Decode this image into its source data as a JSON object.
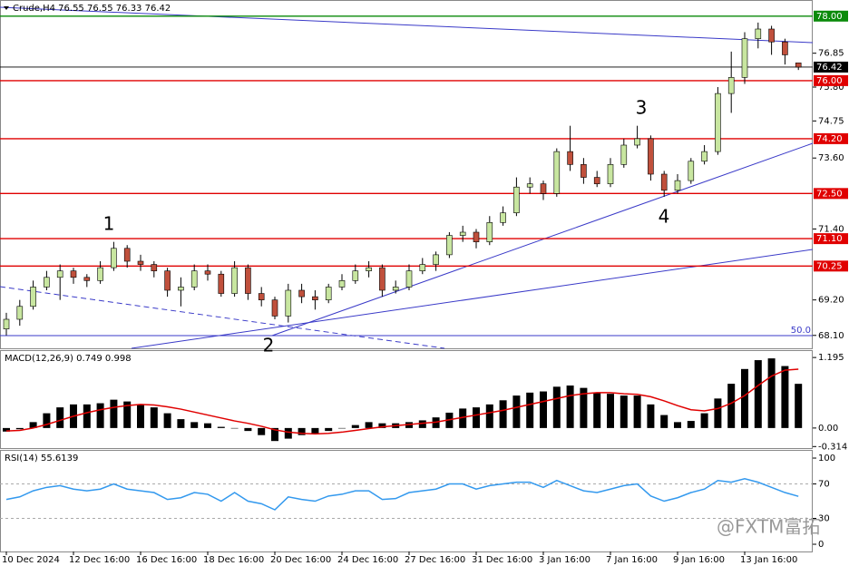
{
  "chart_data": [
    {
      "type": "candlestick",
      "title": "Crude,H4  76.55 76.55 76.33 76.42",
      "categories": [
        "10 Dec 2024",
        null,
        null,
        null,
        null,
        "12 Dec 16:00",
        null,
        null,
        null,
        null,
        "16 Dec 16:00",
        null,
        null,
        null,
        null,
        "18 Dec 16:00",
        null,
        null,
        null,
        null,
        "20 Dec 16:00",
        null,
        null,
        null,
        null,
        "24 Dec 16:00",
        null,
        null,
        null,
        null,
        "27 Dec 16:00",
        null,
        null,
        null,
        null,
        "31 Dec 16:00",
        null,
        null,
        null,
        null,
        "3 Jan 16:00",
        null,
        null,
        null,
        null,
        "7 Jan 16:00",
        null,
        null,
        null,
        null,
        "9 Jan 16:00",
        null,
        null,
        null,
        null,
        "13 Jan 16:00",
        null,
        null,
        null,
        null
      ],
      "open": [
        68.3,
        68.6,
        69.0,
        69.6,
        69.9,
        70.1,
        69.9,
        69.8,
        70.2,
        70.8,
        70.4,
        70.3,
        70.1,
        69.5,
        69.6,
        70.1,
        70.0,
        69.4,
        70.2,
        69.4,
        69.2,
        68.7,
        69.5,
        69.3,
        69.2,
        69.6,
        69.8,
        70.1,
        70.2,
        69.5,
        69.6,
        70.1,
        70.3,
        70.6,
        71.2,
        71.3,
        71.0,
        71.6,
        71.9,
        72.7,
        72.8,
        72.5,
        73.8,
        73.4,
        73.0,
        72.8,
        73.4,
        74.0,
        74.2,
        73.1,
        72.6,
        72.9,
        73.5,
        73.8,
        75.6,
        76.1,
        77.3,
        77.6,
        77.2,
        76.55
      ],
      "high": [
        68.8,
        69.2,
        69.8,
        70.1,
        70.3,
        70.2,
        70.0,
        70.4,
        71.0,
        70.9,
        70.6,
        70.4,
        70.2,
        69.9,
        70.3,
        70.3,
        70.1,
        70.4,
        70.3,
        69.6,
        69.3,
        69.7,
        69.7,
        69.5,
        69.7,
        70.0,
        70.3,
        70.4,
        70.3,
        69.8,
        70.3,
        70.5,
        70.7,
        71.3,
        71.5,
        71.4,
        71.8,
        72.1,
        73.0,
        73.0,
        72.9,
        73.9,
        74.6,
        73.6,
        73.2,
        73.6,
        74.2,
        74.6,
        74.3,
        73.2,
        73.1,
        73.6,
        74.0,
        75.8,
        76.9,
        77.5,
        77.8,
        77.7,
        77.3,
        76.55
      ],
      "low": [
        68.1,
        68.4,
        68.9,
        69.5,
        69.2,
        69.7,
        69.6,
        69.7,
        70.1,
        70.2,
        70.1,
        69.9,
        69.3,
        69.0,
        69.5,
        69.8,
        69.3,
        69.3,
        69.2,
        69.0,
        68.6,
        68.5,
        69.1,
        68.9,
        69.1,
        69.5,
        69.7,
        69.9,
        69.3,
        69.4,
        69.5,
        70.0,
        70.1,
        70.5,
        71.0,
        70.8,
        70.9,
        71.5,
        71.8,
        72.5,
        72.3,
        72.4,
        73.2,
        72.8,
        72.7,
        72.7,
        73.3,
        73.9,
        72.9,
        72.4,
        72.5,
        72.8,
        73.4,
        73.7,
        75.0,
        75.9,
        77.0,
        76.8,
        76.5,
        76.33
      ],
      "close": [
        68.6,
        69.0,
        69.6,
        69.9,
        70.1,
        69.9,
        69.8,
        70.2,
        70.8,
        70.4,
        70.3,
        70.1,
        69.5,
        69.6,
        70.1,
        70.0,
        69.4,
        70.2,
        69.4,
        69.2,
        68.7,
        69.5,
        69.3,
        69.2,
        69.6,
        69.8,
        70.1,
        70.2,
        69.5,
        69.6,
        70.1,
        70.3,
        70.6,
        71.2,
        71.3,
        71.0,
        71.6,
        71.9,
        72.7,
        72.8,
        72.5,
        73.8,
        73.4,
        73.0,
        72.8,
        73.4,
        74.0,
        74.2,
        73.1,
        72.6,
        72.9,
        73.5,
        73.8,
        75.6,
        76.1,
        77.3,
        77.6,
        77.2,
        76.8,
        76.42
      ],
      "up_color": "#c8e6a0",
      "down_color": "#c0503c",
      "ylim": [
        67.7,
        78.5
      ],
      "yticks": [
        {
          "value": 68.1,
          "label": "68.10"
        },
        {
          "value": 69.2,
          "label": "69.20"
        },
        {
          "value": 71.4,
          "label": "71.40"
        },
        {
          "value": 73.6,
          "label": "73.60"
        },
        74.75,
        {
          "value": 75.8,
          "label": "75.80"
        },
        76.85
      ],
      "levels": [
        {
          "value": 78,
          "label": "78.00",
          "color": "#0a8a0a"
        },
        {
          "value": 76.42,
          "color": "#000000"
        },
        {
          "value": 76,
          "label": "76.00",
          "color": "#e00000"
        },
        {
          "value": 74.2,
          "label": "74.20",
          "color": "#e00000"
        },
        {
          "value": 72.5,
          "label": "72.50",
          "color": "#e00000"
        },
        {
          "value": 71.1,
          "label": "71.10",
          "color": "#e00000"
        },
        {
          "value": 70.25,
          "color": "#e00000"
        }
      ],
      "annotations": [
        "1",
        "2",
        "3",
        "4",
        "50.0"
      ],
      "watermark": "@FXTM富拓"
    },
    {
      "type": "macd",
      "title": "MACD(12,26,9) 0.749 0.998",
      "histogram": {
        "color": "#000000",
        "values": [
          -0.06,
          -0.02,
          0.1,
          0.25,
          0.35,
          0.4,
          0.4,
          0.42,
          0.48,
          0.45,
          0.4,
          0.35,
          0.25,
          0.15,
          0.1,
          0.08,
          0.02,
          0.0,
          -0.05,
          -0.12,
          -0.22,
          -0.18,
          -0.12,
          -0.1,
          -0.05,
          0.0,
          0.05,
          0.1,
          0.08,
          0.08,
          0.1,
          0.13,
          0.18,
          0.26,
          0.33,
          0.35,
          0.4,
          0.47,
          0.55,
          0.6,
          0.62,
          0.7,
          0.72,
          0.68,
          0.6,
          0.58,
          0.55,
          0.55,
          0.4,
          0.22,
          0.1,
          0.12,
          0.25,
          0.5,
          0.75,
          1.0,
          1.15,
          1.18,
          1.05,
          0.749
        ]
      },
      "signal": {
        "color": "#e00000",
        "values": [
          -0.05,
          -0.04,
          0.0,
          0.06,
          0.13,
          0.2,
          0.26,
          0.31,
          0.35,
          0.38,
          0.4,
          0.39,
          0.36,
          0.32,
          0.27,
          0.22,
          0.17,
          0.12,
          0.08,
          0.03,
          -0.03,
          -0.07,
          -0.09,
          -0.1,
          -0.09,
          -0.07,
          -0.04,
          -0.01,
          0.02,
          0.04,
          0.06,
          0.08,
          0.1,
          0.14,
          0.18,
          0.22,
          0.26,
          0.3,
          0.35,
          0.4,
          0.45,
          0.5,
          0.55,
          0.58,
          0.6,
          0.6,
          0.58,
          0.57,
          0.53,
          0.46,
          0.38,
          0.31,
          0.29,
          0.33,
          0.42,
          0.55,
          0.72,
          0.88,
          0.98,
          0.998
        ]
      },
      "ylim": [
        -0.34,
        1.32
      ],
      "yticks": [
        1.195,
        {
          "value": 0,
          "label": "0.00"
        },
        -0.314
      ]
    },
    {
      "type": "line",
      "title": "RSI(14) 55.6139",
      "color": "#3399ee",
      "values": [
        52,
        55,
        62,
        66,
        68,
        64,
        62,
        64,
        70,
        64,
        62,
        60,
        52,
        54,
        60,
        58,
        50,
        60,
        50,
        47,
        40,
        55,
        52,
        50,
        56,
        58,
        62,
        62,
        52,
        53,
        60,
        62,
        64,
        70,
        70,
        64,
        68,
        70,
        72,
        72,
        66,
        74,
        68,
        62,
        60,
        64,
        68,
        70,
        56,
        50,
        54,
        60,
        64,
        74,
        72,
        76,
        72,
        66,
        60,
        55.6139
      ],
      "ylim": [
        -8.4,
        109.5
      ],
      "yticks": [
        100,
        70,
        30,
        0
      ],
      "levels": [
        70,
        30
      ]
    }
  ]
}
